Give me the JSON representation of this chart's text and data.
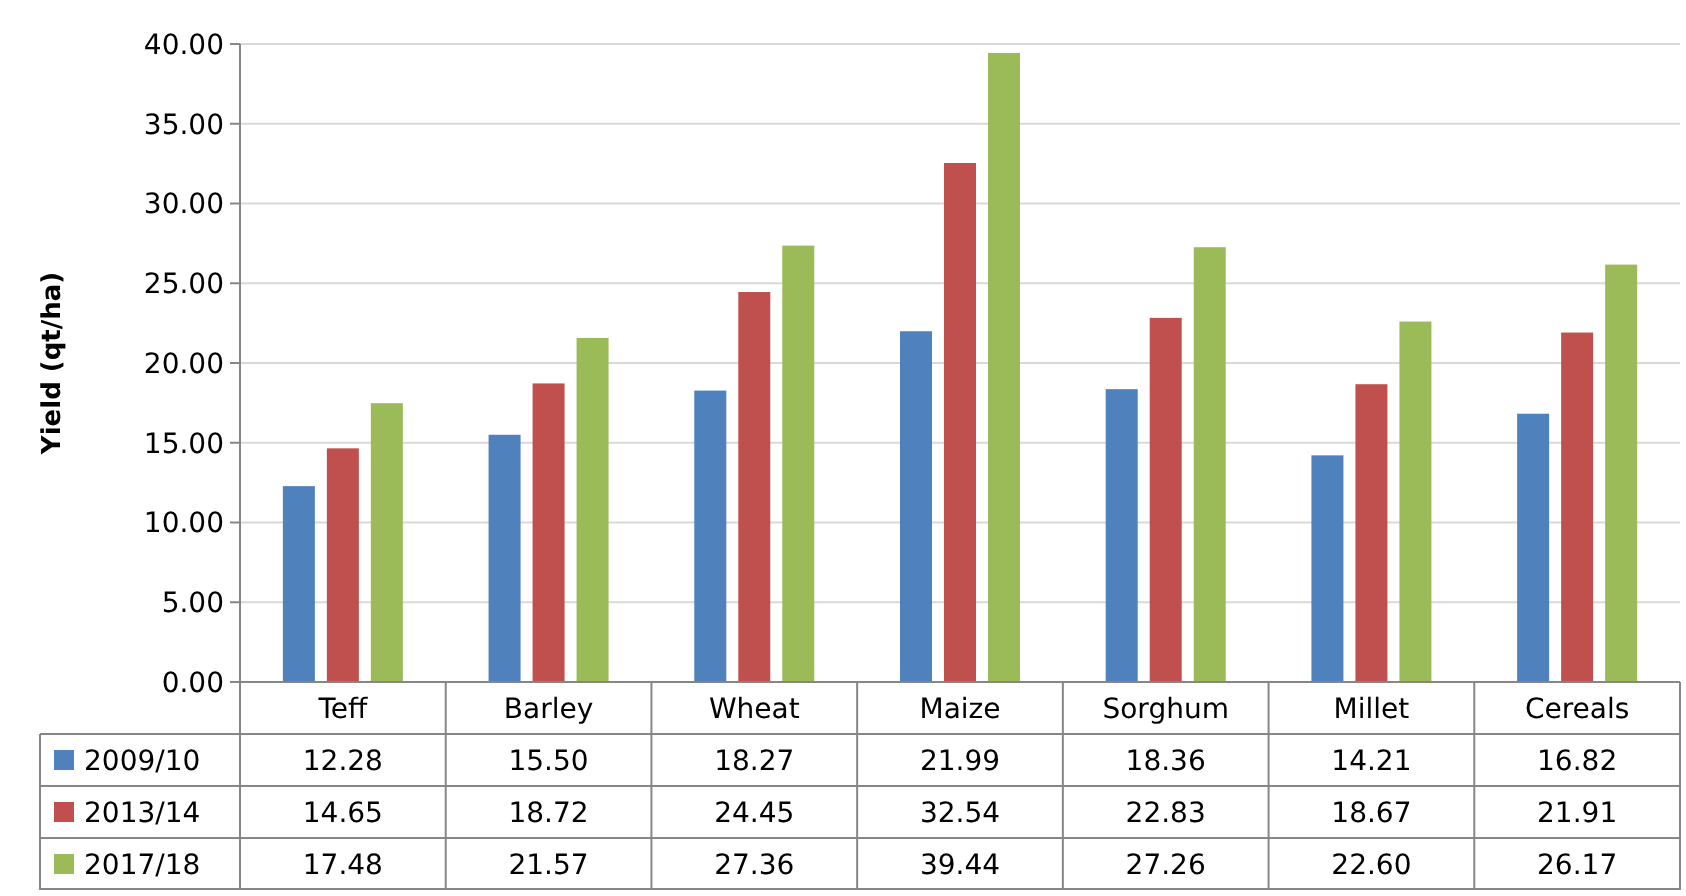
{
  "chart_data": {
    "type": "bar",
    "ylabel": "Yield (qt/ha)",
    "categories": [
      "Teff",
      "Barley",
      "Wheat",
      "Maize",
      "Sorghum",
      "Millet",
      "Cereals"
    ],
    "series": [
      {
        "name": "2009/10",
        "color": "#4f81bd",
        "values": [
          12.28,
          15.5,
          18.27,
          21.99,
          18.36,
          14.21,
          16.82
        ],
        "value_labels": [
          "12.28",
          "15.50",
          "18.27",
          "21.99",
          "18.36",
          "14.21",
          "16.82"
        ]
      },
      {
        "name": "2013/14",
        "color": "#c0504d",
        "values": [
          14.65,
          18.72,
          24.45,
          32.54,
          22.83,
          18.67,
          21.91
        ],
        "value_labels": [
          "14.65",
          "18.72",
          "24.45",
          "32.54",
          "22.83",
          "18.67",
          "21.91"
        ]
      },
      {
        "name": "2017/18",
        "color": "#9bbb59",
        "values": [
          17.48,
          21.57,
          27.36,
          39.44,
          27.26,
          22.6,
          26.17
        ],
        "value_labels": [
          "17.48",
          "21.57",
          "27.36",
          "39.44",
          "27.26",
          "22.60",
          "26.17"
        ]
      }
    ],
    "ylim": [
      0,
      40
    ],
    "yticks": [
      {
        "value": 0,
        "label": "0.00"
      },
      {
        "value": 5,
        "label": "5.00"
      },
      {
        "value": 10,
        "label": "10.00"
      },
      {
        "value": 15,
        "label": "15.00"
      },
      {
        "value": 20,
        "label": "20.00"
      },
      {
        "value": 25,
        "label": "25.00"
      },
      {
        "value": 30,
        "label": "30.00"
      },
      {
        "value": 35,
        "label": "35.00"
      },
      {
        "value": 40,
        "label": "40.00"
      }
    ],
    "grid": true,
    "legend": "bottom"
  }
}
